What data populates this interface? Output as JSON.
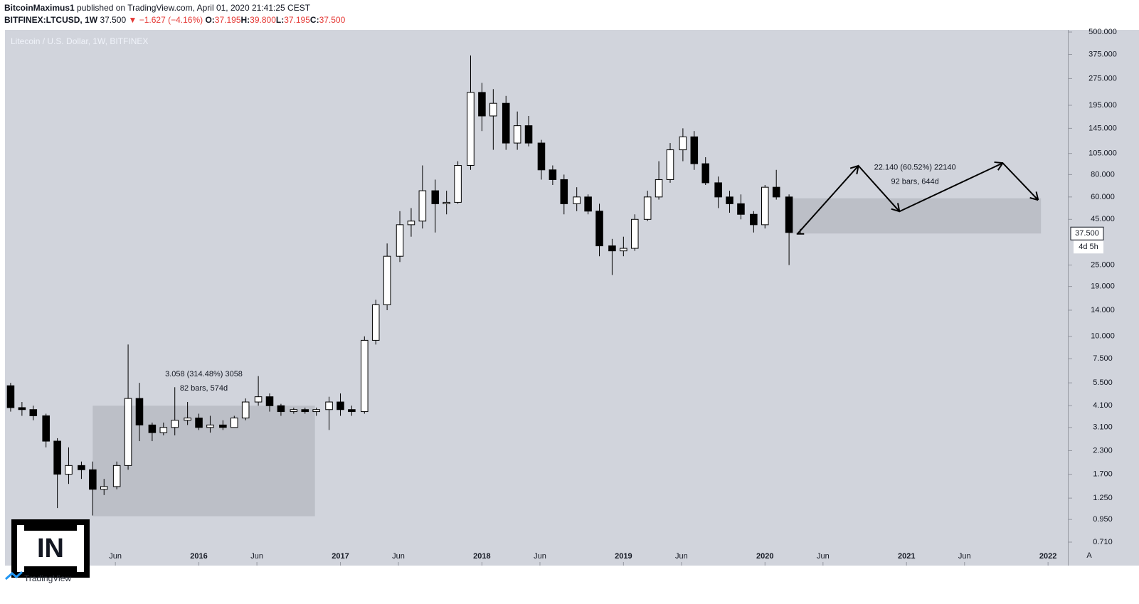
{
  "header": {
    "author": "BitcoinMaximus1",
    "published": "published on TradingView.com, April 01, 2020 21:41:25 CEST",
    "symbol": "BITFINEX:LTCUSD, 1W",
    "price": "37.500",
    "change": "▼ −1.627 (−4.16%)",
    "ohlc": [
      {
        "key": "O:",
        "val": "37.195"
      },
      {
        "key": "H:",
        "val": "39.800"
      },
      {
        "key": "L:",
        "val": "37.195"
      },
      {
        "key": "C:",
        "val": "37.500"
      }
    ]
  },
  "chart_data": {
    "type": "candlestick",
    "title": "Litecoin / U.S. Dollar, 1W, BITFINEX",
    "log_scale": true,
    "grid": false,
    "up_color": "#ffffff",
    "down_color": "#000000",
    "xlim": [
      2014.63,
      2022.14
    ],
    "ylim": [
      0.525,
      514
    ],
    "xticks": [
      {
        "value": 2015.41,
        "label": "Jun"
      },
      2016,
      {
        "value": 2016.41,
        "label": "Jun"
      },
      2017,
      {
        "value": 2017.41,
        "label": "Jun"
      },
      2018,
      {
        "value": 2018.41,
        "label": "Jun"
      },
      2019,
      {
        "value": 2019.41,
        "label": "Jun"
      },
      2020,
      {
        "value": 2020.41,
        "label": "Jun"
      },
      2021,
      {
        "value": 2021.41,
        "label": "Jun"
      },
      2022
    ],
    "yticks": [
      {
        "value": 500,
        "label": "500.000"
      },
      {
        "value": 375,
        "label": "375.000"
      },
      {
        "value": 275,
        "label": "275.000"
      },
      {
        "value": 195,
        "label": "195.000"
      },
      {
        "value": 145,
        "label": "145.000"
      },
      {
        "value": 105,
        "label": "105.000"
      },
      {
        "value": 80,
        "label": "80.000"
      },
      {
        "value": 60,
        "label": "60.000"
      },
      {
        "value": 45,
        "label": "45.000"
      },
      {
        "value": 25,
        "label": "25.000"
      },
      {
        "value": 19,
        "label": "19.000"
      },
      {
        "value": 14,
        "label": "14.000"
      },
      {
        "value": 10,
        "label": "10.000"
      },
      {
        "value": 7.5,
        "label": "7.500"
      },
      {
        "value": 5.5,
        "label": "5.500"
      },
      {
        "value": 4.1,
        "label": "4.100"
      },
      {
        "value": 3.1,
        "label": "3.100"
      },
      {
        "value": 2.3,
        "label": "2.300"
      },
      {
        "value": 1.7,
        "label": "1.700"
      },
      {
        "value": 1.25,
        "label": "1.250"
      },
      {
        "value": 0.95,
        "label": "0.950"
      },
      {
        "value": 0.71,
        "label": "0.710"
      }
    ],
    "x": [
      2014.67,
      2014.75,
      2014.83,
      2014.92,
      2015.0,
      2015.08,
      2015.17,
      2015.25,
      2015.33,
      2015.42,
      2015.5,
      2015.58,
      2015.67,
      2015.75,
      2015.83,
      2015.92,
      2016.0,
      2016.08,
      2016.17,
      2016.25,
      2016.33,
      2016.42,
      2016.5,
      2016.58,
      2016.67,
      2016.75,
      2016.83,
      2016.92,
      2017.0,
      2017.08,
      2017.17,
      2017.25,
      2017.33,
      2017.42,
      2017.5,
      2017.58,
      2017.67,
      2017.75,
      2017.83,
      2017.92,
      2018.0,
      2018.08,
      2018.17,
      2018.25,
      2018.33,
      2018.42,
      2018.5,
      2018.58,
      2018.67,
      2018.75,
      2018.83,
      2018.92,
      2019.0,
      2019.08,
      2019.17,
      2019.25,
      2019.33,
      2019.42,
      2019.5,
      2019.58,
      2019.67,
      2019.75,
      2019.83,
      2019.92,
      2020.0,
      2020.08,
      2020.17,
      2020.25
    ],
    "open": [
      5.3,
      4.0,
      3.9,
      3.6,
      2.6,
      1.7,
      1.9,
      1.8,
      1.4,
      1.45,
      1.9,
      4.5,
      3.2,
      2.9,
      3.1,
      3.4,
      3.5,
      3.1,
      3.2,
      3.1,
      3.5,
      4.3,
      4.6,
      4.1,
      3.8,
      3.9,
      3.8,
      3.9,
      4.3,
      3.9,
      3.8,
      9.5,
      15,
      28,
      42,
      44,
      65,
      55,
      56,
      90,
      230,
      170,
      200,
      120,
      150,
      120,
      85,
      75,
      55,
      60,
      50,
      32,
      30,
      31,
      45,
      60,
      75,
      110,
      130,
      92,
      72,
      60,
      55,
      48,
      42,
      68,
      60,
      37.195
    ],
    "high": [
      5.5,
      4.3,
      4.1,
      3.7,
      2.7,
      2.4,
      2.0,
      2.0,
      1.6,
      2.0,
      9.0,
      5.5,
      3.3,
      3.3,
      5.2,
      4.3,
      3.7,
      3.6,
      3.4,
      3.6,
      4.5,
      6.0,
      4.8,
      4.2,
      4.0,
      4.0,
      4.0,
      4.6,
      4.8,
      4.1,
      10,
      16,
      33,
      50,
      52,
      90,
      75,
      65,
      95,
      370,
      260,
      240,
      220,
      180,
      170,
      125,
      90,
      80,
      68,
      62,
      55,
      35,
      36,
      48,
      65,
      95,
      120,
      145,
      140,
      100,
      78,
      65,
      62,
      50,
      70,
      85,
      62,
      39.8
    ],
    "low": [
      3.8,
      3.6,
      3.4,
      2.4,
      1.1,
      1.5,
      1.6,
      1.0,
      1.3,
      1.4,
      1.8,
      2.6,
      2.6,
      2.8,
      2.8,
      3.2,
      3.0,
      2.9,
      3.0,
      3.1,
      3.4,
      4.1,
      3.8,
      3.6,
      3.7,
      3.7,
      3.6,
      3.0,
      3.6,
      3.6,
      3.7,
      9.0,
      14,
      26,
      36,
      40,
      38,
      48,
      55,
      85,
      140,
      110,
      110,
      110,
      115,
      75,
      70,
      48,
      50,
      48,
      28,
      22,
      28,
      30,
      44,
      58,
      72,
      95,
      85,
      70,
      52,
      49,
      45,
      38,
      40,
      58,
      25,
      37.195
    ],
    "close": [
      4.0,
      3.9,
      3.6,
      2.6,
      1.7,
      1.9,
      1.8,
      1.4,
      1.45,
      1.9,
      4.5,
      3.2,
      2.9,
      3.1,
      3.4,
      3.5,
      3.1,
      3.2,
      3.1,
      3.5,
      4.3,
      4.6,
      4.1,
      3.8,
      3.9,
      3.8,
      3.9,
      4.3,
      3.9,
      3.8,
      9.5,
      15,
      28,
      42,
      44,
      65,
      55,
      56,
      90,
      230,
      170,
      200,
      120,
      150,
      120,
      85,
      75,
      55,
      60,
      50,
      32,
      30,
      31,
      45,
      60,
      75,
      110,
      130,
      92,
      72,
      60,
      55,
      48,
      42,
      68,
      60,
      38,
      37.5
    ],
    "ranges": [
      {
        "x0": 2015.25,
        "x1": 2016.82,
        "y0": 0.99,
        "y1": 4.1,
        "line1": "3.058 (314.48%) 3058",
        "line2": "82 bars, 574d"
      },
      {
        "x0": 2020.17,
        "x1": 2021.95,
        "y0": 37.5,
        "y1": 59,
        "line1": "22.140 (60.52%) 22140",
        "line2": "92 bars, 644d"
      }
    ],
    "projection": {
      "x": [
        2020.23,
        2020.66,
        2020.95,
        2021.68,
        2021.93
      ],
      "y": [
        37.4,
        89.6,
        49.8,
        92.8,
        57.7
      ]
    },
    "last_price_label": "37.500",
    "countdown": "4d 5h",
    "scale_button": "A"
  },
  "footer": {
    "brand": "TradingView",
    "watermark": "IN"
  }
}
